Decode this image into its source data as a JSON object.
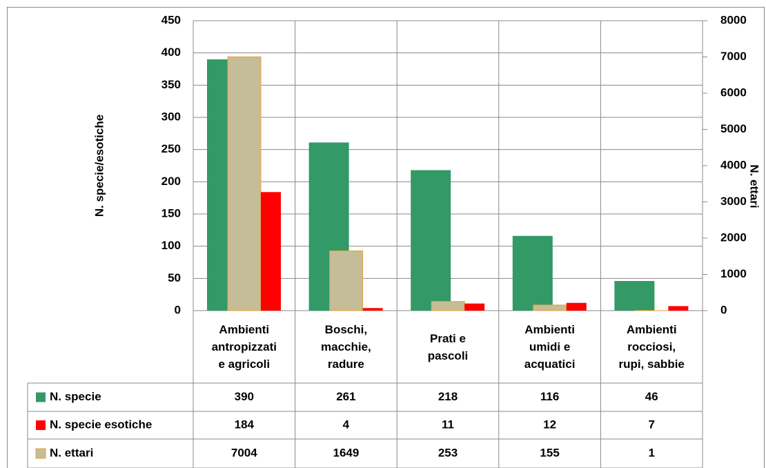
{
  "chart_data": {
    "type": "bar",
    "categories": [
      "Ambienti\nantropizzati\ne agricoli",
      "Boschi,\nmacchie,\nradure",
      "Prati e\npascoli",
      "Ambienti\numidi e\nacquatici",
      "Ambienti\nrocciosi,\nrupi, sabbie"
    ],
    "series": [
      {
        "name": "N. specie",
        "color": "#339966",
        "values": [
          390,
          261,
          218,
          116,
          46
        ]
      },
      {
        "name": "N. specie esotiche",
        "color": "#ff0000",
        "values": [
          184,
          4,
          11,
          12,
          7
        ]
      },
      {
        "name": "N. ettari",
        "color": "#c4bd97",
        "axis": "y2",
        "values": [
          7004,
          1649,
          253,
          155,
          1
        ]
      }
    ],
    "ylabel": "N. specie/esotiche",
    "y2label": "N. ettari",
    "ylim": [
      0,
      450
    ],
    "yticks": [
      0,
      50,
      100,
      150,
      200,
      250,
      300,
      350,
      400,
      450
    ],
    "y2lim": [
      0,
      8000
    ],
    "y2ticks": [
      0,
      1000,
      2000,
      3000,
      4000,
      5000,
      6000,
      7000,
      8000
    ],
    "grid": true
  }
}
